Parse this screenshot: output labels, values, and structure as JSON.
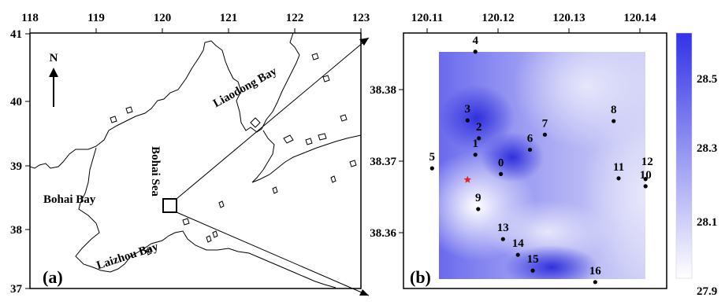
{
  "panel_a": {
    "label": "(a)",
    "lon_ticks": [
      "118",
      "119",
      "120",
      "121",
      "122",
      "123"
    ],
    "lat_ticks": [
      "41",
      "40",
      "39",
      "38",
      "37"
    ],
    "north": "N",
    "places": {
      "liaodong": "Liaodong Bay",
      "bohai_sea": "Bohai Sea",
      "bohai_bay": "Bohai Bay",
      "laizhou": "Laizhou Bay"
    }
  },
  "panel_b": {
    "label": "(b)",
    "lon_ticks": [
      "120.11",
      "120.12",
      "120.13",
      "120.14"
    ],
    "lat_ticks": [
      "38.38",
      "38.37",
      "38.36"
    ],
    "stations": [
      {
        "id": "0",
        "lon": 120.1204,
        "lat": 38.3682
      },
      {
        "id": "1",
        "lon": 120.1168,
        "lat": 38.3709
      },
      {
        "id": "2",
        "lon": 120.1173,
        "lat": 38.3732
      },
      {
        "id": "3",
        "lon": 120.1157,
        "lat": 38.3757
      },
      {
        "id": "4",
        "lon": 120.1168,
        "lat": 38.3853
      },
      {
        "id": "5",
        "lon": 120.1107,
        "lat": 38.369
      },
      {
        "id": "6",
        "lon": 120.1245,
        "lat": 38.3716
      },
      {
        "id": "7",
        "lon": 120.1266,
        "lat": 38.3737
      },
      {
        "id": "8",
        "lon": 120.1363,
        "lat": 38.3756
      },
      {
        "id": "9",
        "lon": 120.1172,
        "lat": 38.3633
      },
      {
        "id": "10",
        "lon": 120.1408,
        "lat": 38.3665
      },
      {
        "id": "11",
        "lon": 120.137,
        "lat": 38.3676
      },
      {
        "id": "12",
        "lon": 120.1408,
        "lat": 38.3675
      },
      {
        "id": "13",
        "lon": 120.1207,
        "lat": 38.3591
      },
      {
        "id": "14",
        "lon": 120.1228,
        "lat": 38.3569
      },
      {
        "id": "15",
        "lon": 120.1249,
        "lat": 38.3547
      },
      {
        "id": "16",
        "lon": 120.1337,
        "lat": 38.3531
      }
    ],
    "star_marker": {
      "lon": 120.1157,
      "lat": 38.3674,
      "color": "#e32222"
    },
    "colorbar": {
      "ticks": [
        "28.5",
        "28.3",
        "28.1",
        "27.9"
      ],
      "high_color": "#3232e6",
      "low_color": "#ffffff"
    }
  }
}
